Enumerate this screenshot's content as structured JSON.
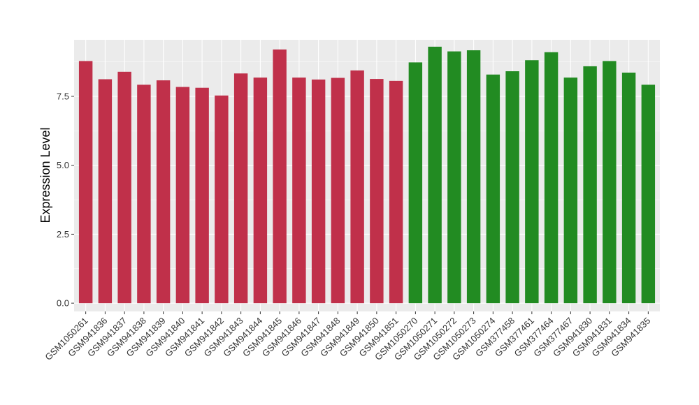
{
  "chart_data": {
    "type": "bar",
    "title": "",
    "xlabel": "",
    "ylabel": "Expression Level",
    "ylim": [
      -0.3,
      9.55
    ],
    "yticks": [
      "0.0",
      "2.5",
      "5.0",
      "7.5"
    ],
    "grid": true,
    "legend": "none",
    "categories": [
      "GSM1050261",
      "GSM941836",
      "GSM941837",
      "GSM941838",
      "GSM941839",
      "GSM941840",
      "GSM941841",
      "GSM941842",
      "GSM941843",
      "GSM941844",
      "GSM941845",
      "GSM941846",
      "GSM941847",
      "GSM941848",
      "GSM941849",
      "GSM941850",
      "GSM941851",
      "GSM1050270",
      "GSM1050271",
      "GSM1050272",
      "GSM1050273",
      "GSM1050274",
      "GSM377458",
      "GSM377461",
      "GSM377464",
      "GSM377467",
      "GSM941830",
      "GSM941831",
      "GSM941834",
      "GSM941835"
    ],
    "values": [
      8.78,
      8.12,
      8.39,
      7.92,
      8.08,
      7.84,
      7.81,
      7.53,
      8.33,
      8.18,
      9.2,
      8.18,
      8.11,
      8.17,
      8.44,
      8.13,
      8.06,
      8.73,
      9.3,
      9.13,
      9.17,
      8.29,
      8.41,
      8.81,
      9.1,
      8.18,
      8.59,
      8.78,
      8.36,
      7.92
    ],
    "colors": [
      "#C0304A",
      "#C0304A",
      "#C0304A",
      "#C0304A",
      "#C0304A",
      "#C0304A",
      "#C0304A",
      "#C0304A",
      "#C0304A",
      "#C0304A",
      "#C0304A",
      "#C0304A",
      "#C0304A",
      "#C0304A",
      "#C0304A",
      "#C0304A",
      "#C0304A",
      "#228B22",
      "#228B22",
      "#228B22",
      "#228B22",
      "#228B22",
      "#228B22",
      "#228B22",
      "#228B22",
      "#228B22",
      "#228B22",
      "#228B22",
      "#228B22",
      "#228B22"
    ],
    "panel_background": "#EBEBEB",
    "grid_color": "#FFFFFF"
  }
}
